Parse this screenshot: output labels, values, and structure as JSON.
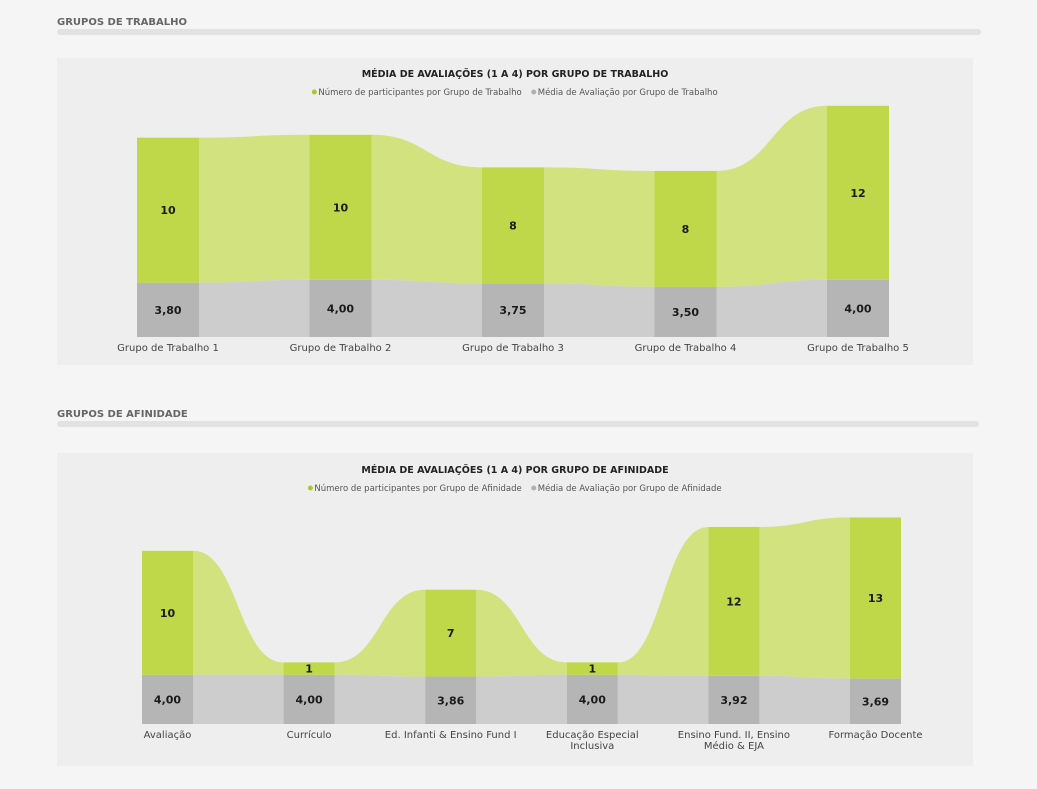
{
  "sections": [
    {
      "title": "GRUPOS DE TRABALHO"
    },
    {
      "title": "GRUPOS DE AFINIDADE"
    }
  ],
  "colors": {
    "green": "#bfd84a",
    "green_ribbon": "#d2e27f",
    "gray": "#b5b5b5",
    "gray_ribbon": "#c9c9c9",
    "legend_green": "#a8c832",
    "legend_gray": "#b0b0b0"
  },
  "chart_data": [
    {
      "type": "bar",
      "stacked": true,
      "title": "MÉDIA DE AVALIAÇÕES (1 A 4) POR GRUPO DE TRABALHO",
      "legend": [
        "Número de participantes por Grupo de Trabalho",
        "Média de Avaliação por Grupo de Trabalho"
      ],
      "legend_position": "top-center",
      "categories": [
        "Grupo de Trabalho 1",
        "Grupo de Trabalho 2",
        "Grupo de Trabalho 3",
        "Grupo de Trabalho 4",
        "Grupo de Trabalho 5"
      ],
      "series": [
        {
          "name": "Média de Avaliação por Grupo de Trabalho",
          "values": [
            3.8,
            4.0,
            3.75,
            3.5,
            4.0
          ],
          "labels": [
            "3,80",
            "4,00",
            "3,75",
            "3,50",
            "4,00"
          ]
        },
        {
          "name": "Número de participantes por Grupo de Trabalho",
          "values": [
            10,
            10,
            8,
            8,
            12
          ],
          "labels": [
            "10",
            "10",
            "8",
            "8",
            "12"
          ]
        }
      ],
      "grid": false
    },
    {
      "type": "bar",
      "stacked": true,
      "title": "MÉDIA DE AVALIAÇÕES (1 A 4) POR GRUPO DE AFINIDADE",
      "legend": [
        "Número de participantes por Grupo de Afinidade",
        "Média de Avaliação por Grupo de Afinidade"
      ],
      "legend_position": "top-center",
      "categories": [
        "Avaliação",
        "Currículo",
        "Ed. Infanti & Ensino Fund I",
        "Educação Especial Inclusiva",
        "Ensino Fund. II, Ensino Médio & EJA",
        "Formação Docente"
      ],
      "category_lines": [
        [
          "Avaliação"
        ],
        [
          "Currículo"
        ],
        [
          "Ed. Infanti & Ensino Fund I"
        ],
        [
          "Educação Especial",
          "Inclusiva"
        ],
        [
          "Ensino Fund. II, Ensino",
          "Médio & EJA"
        ],
        [
          "Formação Docente"
        ]
      ],
      "series": [
        {
          "name": "Média de Avaliação por Grupo de Afinidade",
          "values": [
            4.0,
            4.0,
            3.86,
            4.0,
            3.92,
            3.69
          ],
          "labels": [
            "4,00",
            "4,00",
            "3,86",
            "4,00",
            "3,92",
            "3,69"
          ]
        },
        {
          "name": "Número de participantes por Grupo de Afinidade",
          "values": [
            10,
            1,
            7,
            1,
            12,
            13
          ],
          "labels": [
            "10",
            "1",
            "7",
            "1",
            "12",
            "13"
          ]
        }
      ],
      "grid": false
    }
  ]
}
